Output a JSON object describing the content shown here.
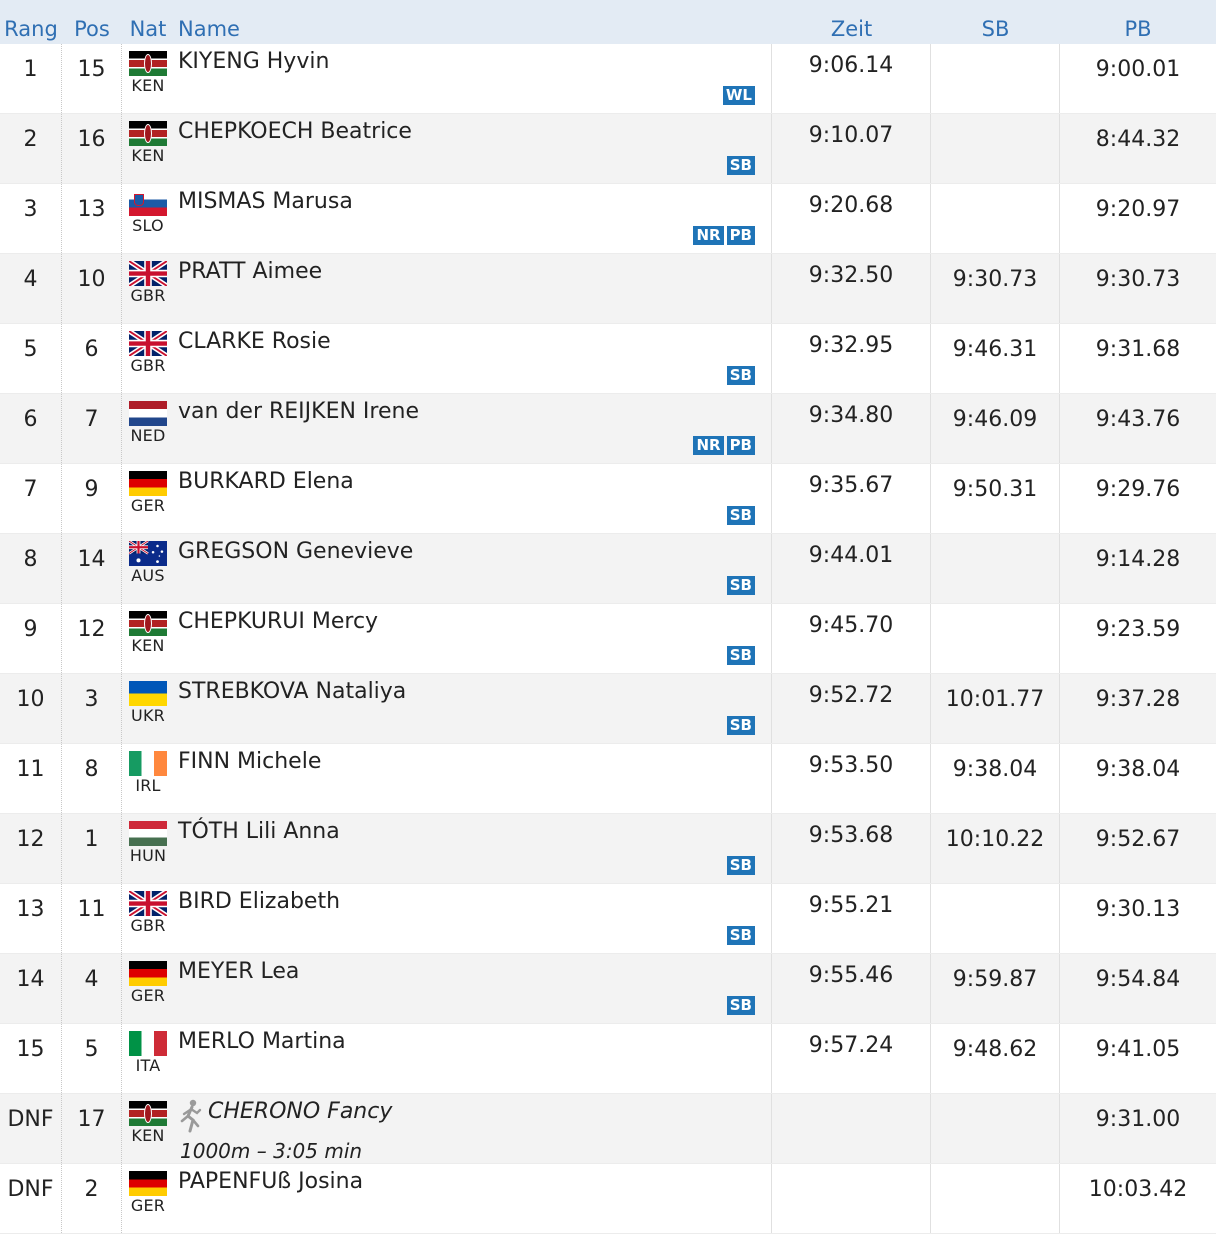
{
  "header": {
    "rang": "Rang",
    "pos": "Pos",
    "nat": "Nat",
    "name": "Name",
    "zeit": "Zeit",
    "sb": "SB",
    "pb": "PB"
  },
  "rows": [
    {
      "rang": "1",
      "pos": "15",
      "nat": "KEN",
      "flag": "ken",
      "name": "KIYENG Hyvin",
      "zeit": "9:06.14",
      "sb": "",
      "pb": "9:00.01",
      "badges": [
        "WL"
      ]
    },
    {
      "rang": "2",
      "pos": "16",
      "nat": "KEN",
      "flag": "ken",
      "name": "CHEPKOECH Beatrice",
      "zeit": "9:10.07",
      "sb": "",
      "pb": "8:44.32",
      "badges": [
        "SB"
      ]
    },
    {
      "rang": "3",
      "pos": "13",
      "nat": "SLO",
      "flag": "slo",
      "name": "MISMAS Marusa",
      "zeit": "9:20.68",
      "sb": "",
      "pb": "9:20.97",
      "badges": [
        "NR",
        "PB"
      ]
    },
    {
      "rang": "4",
      "pos": "10",
      "nat": "GBR",
      "flag": "gbr",
      "name": "PRATT Aimee",
      "zeit": "9:32.50",
      "sb": "9:30.73",
      "pb": "9:30.73",
      "badges": []
    },
    {
      "rang": "5",
      "pos": "6",
      "nat": "GBR",
      "flag": "gbr",
      "name": "CLARKE Rosie",
      "zeit": "9:32.95",
      "sb": "9:46.31",
      "pb": "9:31.68",
      "badges": [
        "SB"
      ]
    },
    {
      "rang": "6",
      "pos": "7",
      "nat": "NED",
      "flag": "ned",
      "name": "van der REIJKEN Irene",
      "zeit": "9:34.80",
      "sb": "9:46.09",
      "pb": "9:43.76",
      "badges": [
        "NR",
        "PB"
      ]
    },
    {
      "rang": "7",
      "pos": "9",
      "nat": "GER",
      "flag": "ger",
      "name": "BURKARD Elena",
      "zeit": "9:35.67",
      "sb": "9:50.31",
      "pb": "9:29.76",
      "badges": [
        "SB"
      ]
    },
    {
      "rang": "8",
      "pos": "14",
      "nat": "AUS",
      "flag": "aus",
      "name": "GREGSON Genevieve",
      "zeit": "9:44.01",
      "sb": "",
      "pb": "9:14.28",
      "badges": [
        "SB"
      ]
    },
    {
      "rang": "9",
      "pos": "12",
      "nat": "KEN",
      "flag": "ken",
      "name": "CHEPKURUI Mercy",
      "zeit": "9:45.70",
      "sb": "",
      "pb": "9:23.59",
      "badges": [
        "SB"
      ]
    },
    {
      "rang": "10",
      "pos": "3",
      "nat": "UKR",
      "flag": "ukr",
      "name": "STREBKOVA Nataliya",
      "zeit": "9:52.72",
      "sb": "10:01.77",
      "pb": "9:37.28",
      "badges": [
        "SB"
      ]
    },
    {
      "rang": "11",
      "pos": "8",
      "nat": "IRL",
      "flag": "irl",
      "name": "FINN Michele",
      "zeit": "9:53.50",
      "sb": "9:38.04",
      "pb": "9:38.04",
      "badges": []
    },
    {
      "rang": "12",
      "pos": "1",
      "nat": "HUN",
      "flag": "hun",
      "name": "TÓTH Lili Anna",
      "zeit": "9:53.68",
      "sb": "10:10.22",
      "pb": "9:52.67",
      "badges": [
        "SB"
      ]
    },
    {
      "rang": "13",
      "pos": "11",
      "nat": "GBR",
      "flag": "gbr",
      "name": "BIRD Elizabeth",
      "zeit": "9:55.21",
      "sb": "",
      "pb": "9:30.13",
      "badges": [
        "SB"
      ]
    },
    {
      "rang": "14",
      "pos": "4",
      "nat": "GER",
      "flag": "ger",
      "name": "MEYER Lea",
      "zeit": "9:55.46",
      "sb": "9:59.87",
      "pb": "9:54.84",
      "badges": [
        "SB"
      ]
    },
    {
      "rang": "15",
      "pos": "5",
      "nat": "ITA",
      "flag": "ita",
      "name": "MERLO Martina",
      "zeit": "9:57.24",
      "sb": "9:48.62",
      "pb": "9:41.05",
      "badges": []
    },
    {
      "rang": "DNF",
      "pos": "17",
      "nat": "KEN",
      "flag": "ken",
      "name": "CHERONO Fancy",
      "note": "1000m – 3:05 min",
      "runner": true,
      "zeit": "",
      "sb": "",
      "pb": "9:31.00",
      "badges": []
    },
    {
      "rang": "DNF",
      "pos": "2",
      "nat": "GER",
      "flag": "ger",
      "name": "PAPENFUß Josina",
      "zeit": "",
      "sb": "",
      "pb": "10:03.42",
      "badges": []
    }
  ]
}
